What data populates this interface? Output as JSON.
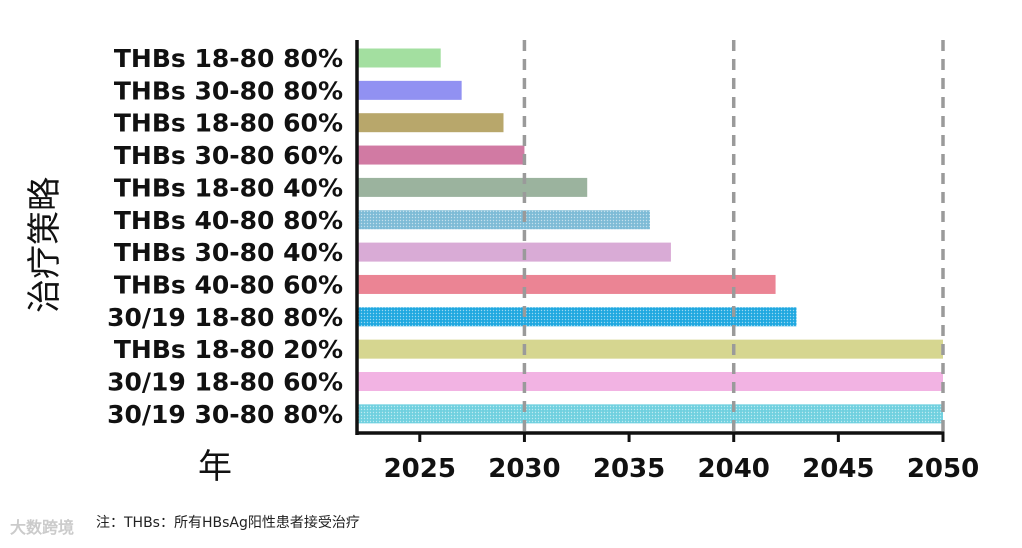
{
  "chart_data": {
    "type": "bar",
    "orientation": "horizontal",
    "ylabel": "治疗策略",
    "xlabel": "年",
    "xlim": [
      2022,
      2050
    ],
    "xticks": [
      2025,
      2030,
      2035,
      2040,
      2045,
      2050
    ],
    "reference_lines": [
      2030,
      2040,
      2050
    ],
    "categories": [
      "THBs 18-80 80%",
      "THBs 30-80 80%",
      "THBs 18-80 60%",
      "THBs 30-80 60%",
      "THBs 18-80 40%",
      "THBs 40-80 80%",
      "THBs 30-80 40%",
      "THBs 40-80 60%",
      "30/19 18-80 80%",
      "THBs 18-80 20%",
      "30/19 18-80 60%",
      "30/19 30-80 80%"
    ],
    "values": [
      2026,
      2027,
      2029,
      2030,
      2033,
      2036,
      2037,
      2042,
      2043,
      2050,
      2050,
      2050
    ],
    "colors": [
      "#a3dfa0",
      "#9191f2",
      "#b8a76b",
      "#d17aa3",
      "#9bb39e",
      "#7dbbd6",
      "#d9abd6",
      "#eb8494",
      "#1fa8e0",
      "#d6d690",
      "#f2b3e3",
      "#6fd0df"
    ],
    "textured": [
      false,
      false,
      false,
      false,
      false,
      true,
      false,
      false,
      true,
      false,
      false,
      true
    ]
  },
  "note": "注：THBs：所有HBsAg阳性患者接受治疗",
  "watermark": "大数跨境"
}
